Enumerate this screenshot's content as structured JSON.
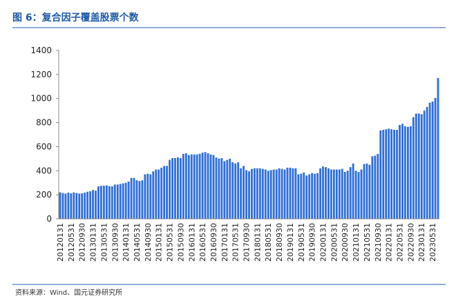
{
  "chart_data": {
    "type": "bar",
    "title": "图 6：复合因子覆盖股票个数",
    "source": "资料来源：Wind、国元证券研究所",
    "categories": [
      "20120131",
      null,
      null,
      null,
      "20120531",
      null,
      null,
      null,
      "20120930",
      null,
      null,
      null,
      "20130131",
      null,
      null,
      null,
      "20130531",
      null,
      null,
      null,
      "20130930",
      null,
      null,
      null,
      "20140131",
      null,
      null,
      null,
      "20140531",
      null,
      null,
      null,
      "20140930",
      null,
      null,
      null,
      "20150131",
      null,
      null,
      null,
      "20150531",
      null,
      null,
      null,
      "20150930",
      null,
      null,
      null,
      "20160131",
      null,
      null,
      null,
      "20160531",
      null,
      null,
      null,
      "20160930",
      null,
      null,
      null,
      "20170131",
      null,
      null,
      null,
      "20170531",
      null,
      null,
      null,
      "20170930",
      null,
      null,
      null,
      "20180131",
      null,
      null,
      null,
      "20180531",
      null,
      null,
      null,
      "20180930",
      null,
      null,
      null,
      "20190131",
      null,
      null,
      null,
      "20190531",
      null,
      null,
      null,
      "20190930",
      null,
      null,
      null,
      "20200131",
      null,
      null,
      null,
      "20200531",
      null,
      null,
      null,
      "20200930",
      null,
      null,
      null,
      "20210131",
      null,
      null,
      null,
      "20210531",
      null,
      null,
      null,
      "20210930",
      null,
      null,
      null,
      "20220131",
      null,
      null,
      null,
      "20220531",
      null,
      null,
      null,
      "20220930",
      null,
      null,
      null,
      "20230131",
      null,
      null,
      null,
      "20230531",
      null,
      null
    ],
    "values": [
      220,
      215,
      210,
      218,
      212,
      220,
      215,
      210,
      212,
      218,
      225,
      230,
      240,
      235,
      270,
      275,
      275,
      278,
      272,
      270,
      285,
      285,
      290,
      295,
      300,
      310,
      340,
      340,
      320,
      315,
      320,
      370,
      375,
      370,
      395,
      410,
      410,
      425,
      440,
      440,
      490,
      505,
      505,
      510,
      505,
      540,
      545,
      530,
      535,
      535,
      535,
      540,
      550,
      555,
      545,
      535,
      530,
      510,
      500,
      505,
      480,
      490,
      500,
      470,
      460,
      470,
      420,
      440,
      405,
      395,
      415,
      420,
      420,
      420,
      415,
      410,
      400,
      405,
      410,
      410,
      420,
      415,
      410,
      425,
      425,
      420,
      420,
      370,
      375,
      385,
      360,
      370,
      380,
      375,
      380,
      420,
      435,
      430,
      420,
      410,
      410,
      410,
      410,
      415,
      390,
      400,
      430,
      460,
      400,
      390,
      410,
      455,
      460,
      450,
      520,
      525,
      540,
      735,
      740,
      745,
      750,
      745,
      740,
      740,
      780,
      790,
      770,
      765,
      770,
      845,
      875,
      875,
      870,
      900,
      930,
      965,
      975,
      1005,
      1170
    ],
    "color": "#2f6fd6",
    "ylim": [
      0,
      1400
    ],
    "yticks": [
      0,
      200,
      400,
      600,
      800,
      1000,
      1200,
      1400
    ],
    "grid": false
  }
}
